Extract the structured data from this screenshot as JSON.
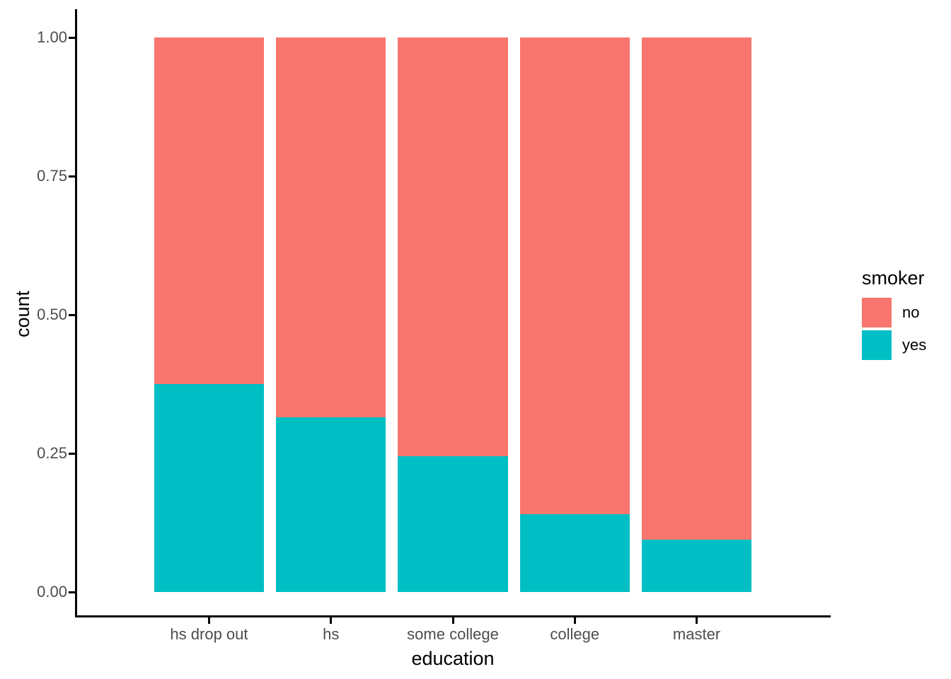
{
  "chart_data": {
    "type": "bar",
    "stacked": true,
    "orientation": "vertical",
    "title": "",
    "xlabel": "education",
    "ylabel": "count",
    "categories": [
      "hs drop out",
      "hs",
      "some college",
      "college",
      "master"
    ],
    "series": [
      {
        "name": "no",
        "color": "#F8766D",
        "values": [
          0.625,
          0.685,
          0.755,
          0.86,
          0.905
        ]
      },
      {
        "name": "yes",
        "color": "#00BFC4",
        "values": [
          0.375,
          0.315,
          0.245,
          0.14,
          0.095
        ]
      }
    ],
    "ylim": [
      0,
      1
    ],
    "yticks": [
      {
        "value": 0.0,
        "label": "0.00"
      },
      {
        "value": 0.25,
        "label": "0.25"
      },
      {
        "value": 0.5,
        "label": "0.50"
      },
      {
        "value": 0.75,
        "label": "0.75"
      },
      {
        "value": 1.0,
        "label": "1.00"
      }
    ],
    "grid": false,
    "bar_width_fraction": 0.9,
    "legend": {
      "title": "smoker",
      "position": "right",
      "entries": [
        {
          "label": "no",
          "color": "#F8766D"
        },
        {
          "label": "yes",
          "color": "#00BFC4"
        }
      ]
    },
    "style": {
      "axis_line_color": "#000000",
      "tick_label_color": "#4D4D4D",
      "axis_title_color": "#000000",
      "background": "#FFFFFF"
    }
  }
}
